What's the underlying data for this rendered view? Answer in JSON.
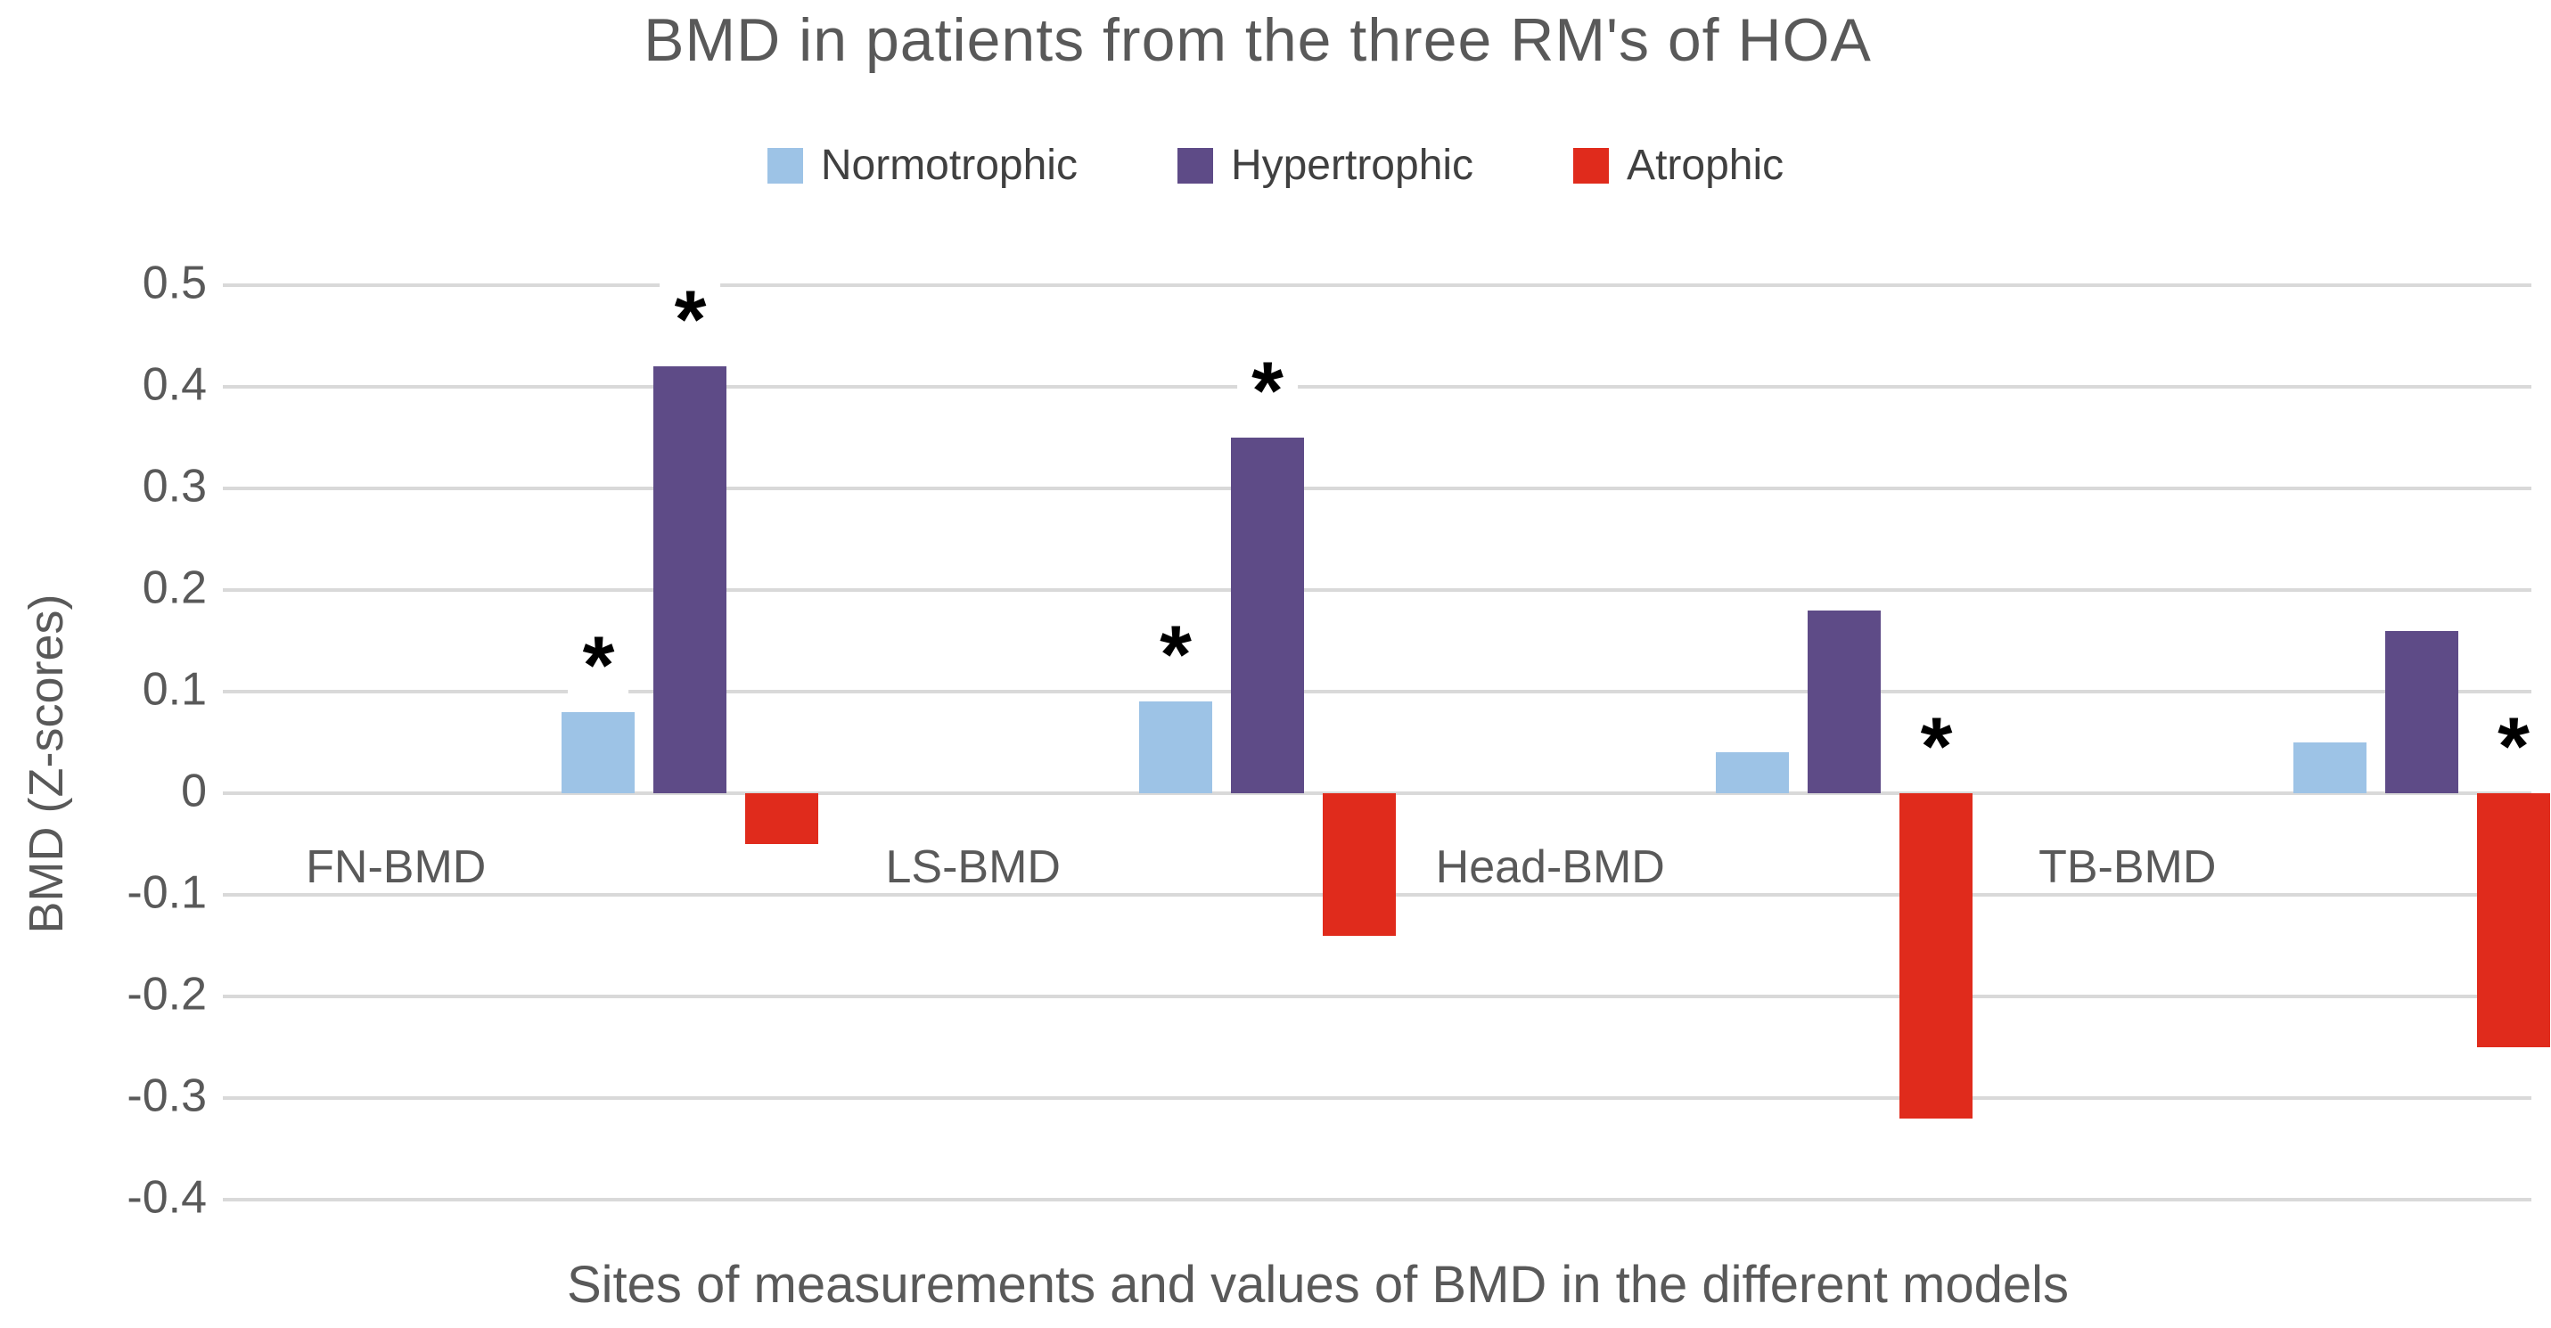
{
  "title": "BMD in patients from the three RM's of HOA",
  "axes": {
    "y_label": "BMD (Z-scores)",
    "x_label": "Sites of measurements and values of BMD in the different models"
  },
  "legend": {
    "items": [
      {
        "label": "Normotrophic",
        "color": "#9DC3E6"
      },
      {
        "label": "Hypertrophic",
        "color": "#5E4B87"
      },
      {
        "label": "Atrophic",
        "color": "#E02B1C"
      }
    ]
  },
  "chart_data": {
    "type": "bar",
    "title": "BMD in patients from the three RM's of HOA",
    "categories": [
      "FN-BMD",
      "LS-BMD",
      "Head-BMD",
      "TB-BMD"
    ],
    "series": [
      {
        "name": "Normotrophic",
        "color": "#9DC3E6",
        "values": [
          0.08,
          0.09,
          0.04,
          0.05
        ],
        "significant": [
          true,
          true,
          false,
          false
        ]
      },
      {
        "name": "Hypertrophic",
        "color": "#5E4B87",
        "values": [
          0.42,
          0.35,
          0.18,
          0.16
        ],
        "significant": [
          true,
          true,
          false,
          false
        ]
      },
      {
        "name": "Atrophic",
        "color": "#E02B1C",
        "values": [
          -0.05,
          -0.14,
          -0.32,
          -0.25
        ],
        "significant": [
          false,
          false,
          true,
          true
        ]
      }
    ],
    "xlabel": "Sites of measurements and values of BMD in the different models",
    "ylabel": "BMD (Z-scores)",
    "ylim": [
      -0.4,
      0.5
    ],
    "yticks": [
      {
        "value": 0.5,
        "label": "0.5"
      },
      {
        "value": 0.4,
        "label": "0.4"
      },
      {
        "value": 0.3,
        "label": "0.3"
      },
      {
        "value": 0.2,
        "label": "0.2"
      },
      {
        "value": 0.1,
        "label": "0.1"
      },
      {
        "value": 0,
        "label": "0"
      },
      {
        "value": -0.1,
        "label": "-0.1"
      },
      {
        "value": -0.2,
        "label": "-0.2"
      },
      {
        "value": -0.3,
        "label": "-0.3"
      },
      {
        "value": -0.4,
        "label": "-0.4"
      }
    ],
    "grid": true,
    "legend_position": "top",
    "significance_marker": "*"
  },
  "colors": {
    "background": "#FFFFFF",
    "text": "#595959",
    "gridline": "#D9D9D9"
  }
}
